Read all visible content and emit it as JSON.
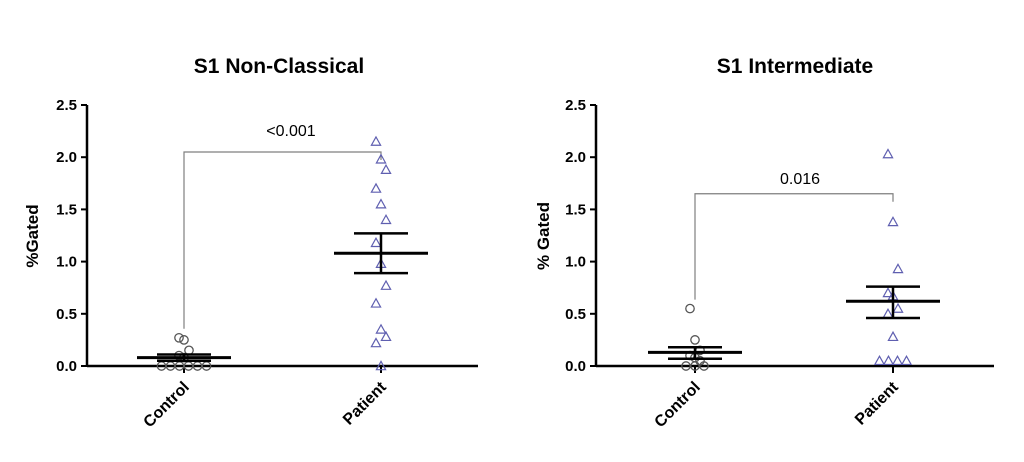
{
  "chart_data": [
    {
      "type": "scatter",
      "title": "S1 Non-Classical",
      "ylabel": "%Gated",
      "xlabel": "",
      "ylim": [
        0,
        2.5
      ],
      "yticks": [
        "0.0",
        "0.5",
        "1.0",
        "1.5",
        "2.0",
        "2.5"
      ],
      "categories": [
        "Control",
        "Patient"
      ],
      "series": [
        {
          "category": "Control",
          "marker": "circle",
          "values": [
            0.27,
            0.25,
            0.15,
            0.1,
            0.08,
            0.0,
            0.0,
            0.0,
            0.0,
            0.0,
            0.0
          ],
          "mean": 0.08,
          "sem_low": 0.05,
          "sem_high": 0.11
        },
        {
          "category": "Patient",
          "marker": "triangle",
          "values": [
            2.15,
            1.98,
            1.88,
            1.7,
            1.55,
            1.4,
            1.18,
            0.98,
            0.77,
            0.6,
            0.35,
            0.28,
            0.22,
            0.0
          ],
          "mean": 1.08,
          "sem_low": 0.89,
          "sem_high": 1.27
        }
      ],
      "annotation": {
        "text": "<0.001",
        "bracket_y": 2.05
      }
    },
    {
      "type": "scatter",
      "title": "S1 Intermediate",
      "ylabel": "% Gated",
      "xlabel": "",
      "ylim": [
        0,
        2.5
      ],
      "yticks": [
        "0.0",
        "0.5",
        "1.0",
        "1.5",
        "2.0",
        "2.5"
      ],
      "categories": [
        "Control",
        "Patient"
      ],
      "series": [
        {
          "category": "Control",
          "marker": "circle",
          "values": [
            0.55,
            0.25,
            0.15,
            0.1,
            0.08,
            0.05,
            0.0,
            0.0,
            0.0
          ],
          "mean": 0.13,
          "sem_low": 0.07,
          "sem_high": 0.18
        },
        {
          "category": "Patient",
          "marker": "triangle",
          "values": [
            2.03,
            1.38,
            0.93,
            0.7,
            0.67,
            0.55,
            0.5,
            0.28,
            0.05,
            0.05,
            0.05,
            0.05
          ],
          "mean": 0.62,
          "sem_low": 0.46,
          "sem_high": 0.76
        }
      ],
      "annotation": {
        "text": "0.016",
        "bracket_y": 1.65
      }
    }
  ],
  "colors": {
    "axis": "#000000",
    "control_marker": "#555555",
    "patient_marker": "#5f5fb0",
    "bracket": "#7f7f7f"
  }
}
